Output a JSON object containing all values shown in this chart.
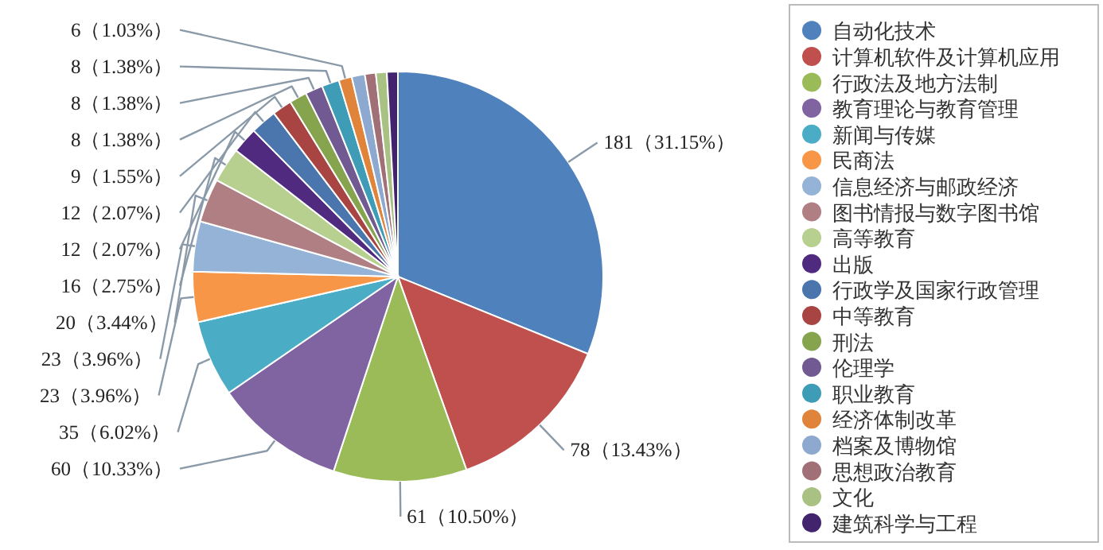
{
  "chart_data": {
    "type": "pie",
    "categories": [
      "自动化技术",
      "计算机软件及计算机应用",
      "行政法及地方法制",
      "教育理论与教育管理",
      "新闻与传媒",
      "民商法",
      "信息经济与邮政经济",
      "图书情报与数字图书馆",
      "高等教育",
      "出版",
      "行政学及国家行政管理",
      "中等教育",
      "刑法",
      "伦理学",
      "职业教育",
      "经济体制改革",
      "档案及博物馆",
      "思想政治教育",
      "文化",
      "建筑科学与工程"
    ],
    "values": [
      181,
      78,
      61,
      60,
      35,
      23,
      23,
      20,
      16,
      12,
      12,
      9,
      8,
      8,
      8,
      6,
      6,
      5,
      5,
      5
    ],
    "colors": [
      "#4f81bd",
      "#c0504d",
      "#9bbb59",
      "#8064a2",
      "#4bacc6",
      "#f79646",
      "#95b3d7",
      "#b07f83",
      "#b7cf8f",
      "#4f2a7f",
      "#4a76ad",
      "#a84442",
      "#86a44e",
      "#715a92",
      "#3f9cb6",
      "#e0843c",
      "#8ea9d0",
      "#a07076",
      "#a9c183",
      "#42236e"
    ],
    "value_labels": [
      "181（31.15%）",
      "78（13.43%）",
      "61（10.50%）",
      "60（10.33%）",
      "35（6.02%）",
      "23（3.96%）",
      "23（3.96%）",
      "20（3.44%）",
      "16（2.75%）",
      "12（2.07%）",
      "12（2.07%）",
      "9（1.55%）",
      "8（1.38%）",
      "8（1.38%）",
      "8（1.38%）",
      "6（1.03%）",
      null,
      null,
      null,
      null
    ],
    "legend": "right"
  }
}
